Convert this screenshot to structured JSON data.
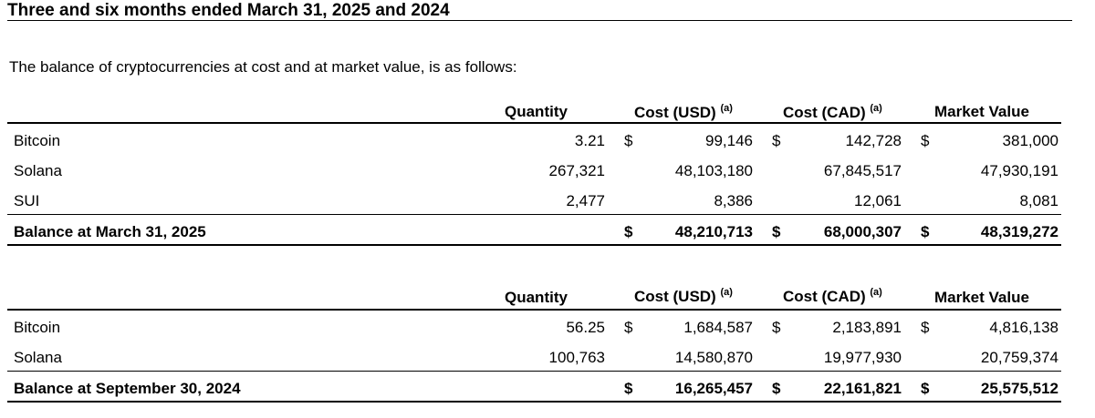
{
  "heading": "Three and six months ended March 31, 2025 and 2024",
  "intro": "The balance of cryptocurrencies at cost and at market value, is as follows:",
  "columns": {
    "quantity": "Quantity",
    "cost_usd": "Cost (USD)",
    "cost_cad": "Cost (CAD)",
    "note": "(a)",
    "market_value": "Market Value"
  },
  "currency_symbol": "$",
  "table_march_2025": {
    "rows": [
      {
        "name": "Bitcoin",
        "quantity": "3.21",
        "cost_usd": "99,146",
        "cost_cad": "142,728",
        "market_value": "381,000"
      },
      {
        "name": "Solana",
        "quantity": "267,321",
        "cost_usd": "48,103,180",
        "cost_cad": "67,845,517",
        "market_value": "47,930,191"
      },
      {
        "name": "SUI",
        "quantity": "2,477",
        "cost_usd": "8,386",
        "cost_cad": "12,061",
        "market_value": "8,081"
      }
    ],
    "total": {
      "label": "Balance at March 31, 2025",
      "cost_usd": "48,210,713",
      "cost_cad": "68,000,307",
      "market_value": "48,319,272"
    }
  },
  "table_sept_2024": {
    "rows": [
      {
        "name": "Bitcoin",
        "quantity": "56.25",
        "cost_usd": "1,684,587",
        "cost_cad": "2,183,891",
        "market_value": "4,816,138"
      },
      {
        "name": "Solana",
        "quantity": "100,763",
        "cost_usd": "14,580,870",
        "cost_cad": "19,977,930",
        "market_value": "20,759,374"
      }
    ],
    "total": {
      "label": "Balance at September 30, 2024",
      "cost_usd": "16,265,457",
      "cost_cad": "22,161,821",
      "market_value": "25,575,512"
    }
  }
}
